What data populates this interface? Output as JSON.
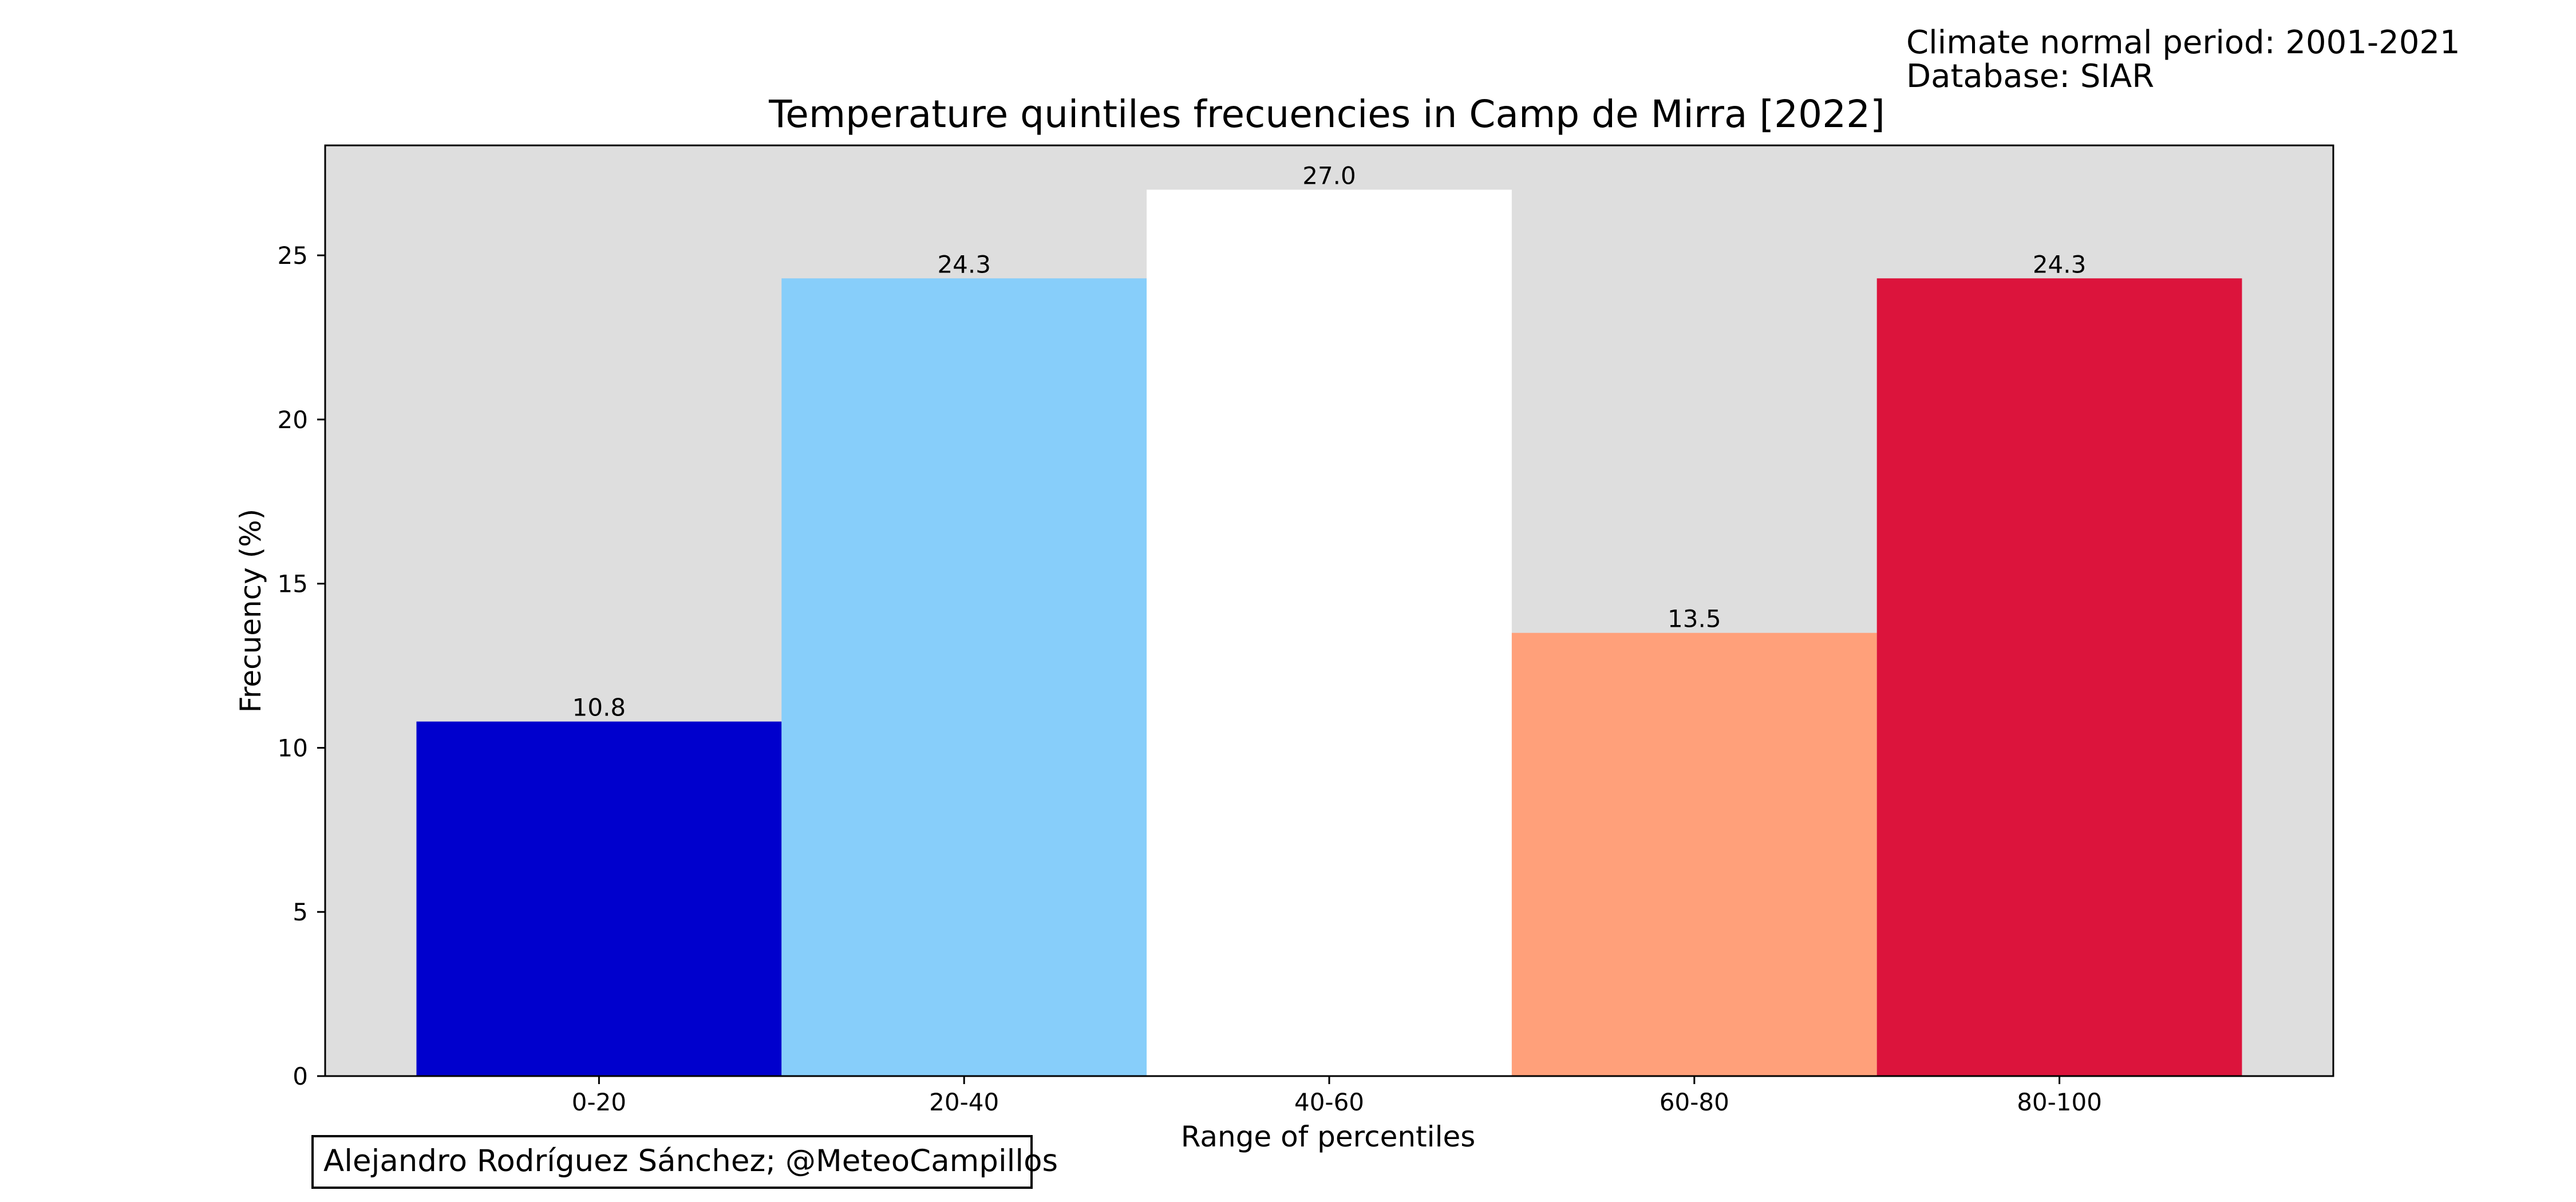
{
  "header": {
    "period_text": "Climate normal period: 2001-2021",
    "database_text": "Database: SIAR"
  },
  "credit_text": "Alejandro Rodríguez Sánchez; @MeteoCampillos",
  "chart_data": {
    "type": "bar",
    "title": "Temperature quintiles frecuencies in Camp de Mirra [2022]",
    "xlabel": "Range of percentiles",
    "ylabel": "Frecuency (%)",
    "categories": [
      "0-20",
      "20-40",
      "40-60",
      "60-80",
      "80-100"
    ],
    "values": [
      10.8,
      24.3,
      27.0,
      13.5,
      24.3
    ],
    "value_labels": [
      "10.8",
      "24.3",
      "27.0",
      "13.5",
      "24.3"
    ],
    "bar_colors": [
      "#0000cd",
      "#87cefa",
      "#ffffff",
      "#ffa07a",
      "#dc143c"
    ],
    "ylim": [
      0,
      28.35
    ],
    "yticks": [
      0,
      5,
      10,
      15,
      20,
      25
    ],
    "background_color": "#dedede",
    "grid": false,
    "legend": "none"
  }
}
